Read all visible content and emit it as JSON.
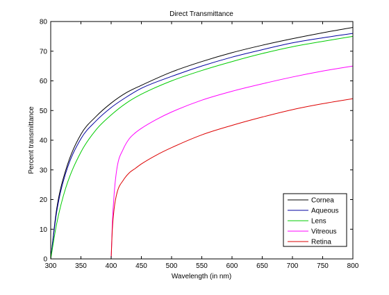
{
  "chart_data": {
    "type": "line",
    "title": "Direct Transmittance",
    "xlabel": "Wavelength (in nm)",
    "ylabel": "Percent transmittance",
    "xlim": [
      300,
      800
    ],
    "ylim": [
      0,
      80
    ],
    "xticks": [
      300,
      350,
      400,
      450,
      500,
      550,
      600,
      650,
      700,
      750,
      800
    ],
    "yticks": [
      0,
      10,
      20,
      30,
      40,
      50,
      60,
      70,
      80
    ],
    "grid": false,
    "legend_position": "bottom-right",
    "series": [
      {
        "name": "Cornea",
        "color": "#000000",
        "x": [
          300,
          310,
          325,
          350,
          375,
          400,
          425,
          450,
          500,
          550,
          600,
          650,
          700,
          750,
          800
        ],
        "y": [
          0,
          17,
          30,
          42,
          48,
          52.5,
          56,
          58.5,
          63,
          66.5,
          69.5,
          72,
          74.2,
          76.2,
          78
        ]
      },
      {
        "name": "Aqueous",
        "color": "#0000a0",
        "x": [
          300,
          310,
          325,
          350,
          375,
          400,
          425,
          450,
          500,
          550,
          600,
          650,
          700,
          750,
          800
        ],
        "y": [
          0,
          16,
          29,
          40.5,
          46.5,
          51,
          54.5,
          57.5,
          61.5,
          65,
          68,
          70.5,
          72.8,
          74.5,
          76
        ]
      },
      {
        "name": "Lens",
        "color": "#00cc00",
        "x": [
          300,
          310,
          325,
          350,
          375,
          400,
          425,
          450,
          500,
          550,
          600,
          650,
          700,
          750,
          800
        ],
        "y": [
          0,
          12,
          24,
          36,
          43.5,
          48.5,
          52.5,
          55.5,
          60,
          63.5,
          66.5,
          69.2,
          71.5,
          73.3,
          75
        ]
      },
      {
        "name": "Vitreous",
        "color": "#ff00ff",
        "x": [
          400,
          402,
          405,
          410,
          420,
          430,
          440,
          450,
          475,
          500,
          550,
          600,
          650,
          700,
          750,
          800
        ],
        "y": [
          0,
          12,
          22,
          31,
          37,
          40.5,
          42.5,
          44,
          47,
          49.5,
          53.5,
          56.5,
          59,
          61.3,
          63.3,
          65
        ]
      },
      {
        "name": "Retina",
        "color": "#dd0000",
        "x": [
          400,
          402,
          405,
          410,
          420,
          430,
          440,
          450,
          475,
          500,
          550,
          600,
          650,
          700,
          750,
          800
        ],
        "y": [
          0,
          10,
          17,
          22.5,
          26.5,
          29,
          30.5,
          32,
          35,
          37.5,
          41.8,
          45,
          47.8,
          50.3,
          52.3,
          54
        ]
      }
    ]
  }
}
